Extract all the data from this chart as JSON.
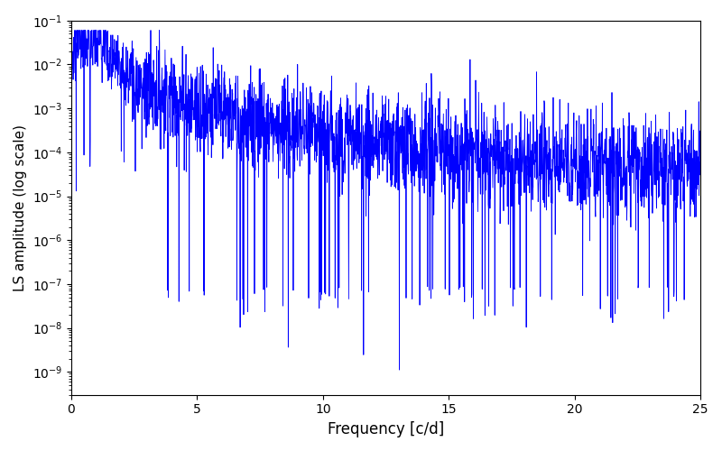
{
  "xlabel": "Frequency [c/d]",
  "ylabel": "LS amplitude (log scale)",
  "xlim": [
    0,
    25
  ],
  "ylim": [
    3e-10,
    0.1
  ],
  "line_color": "#0000ff",
  "background_color": "#ffffff",
  "figsize": [
    8.0,
    5.0
  ],
  "dpi": 100,
  "freq_max": 25.0,
  "n_points": 2500,
  "seed": 7
}
